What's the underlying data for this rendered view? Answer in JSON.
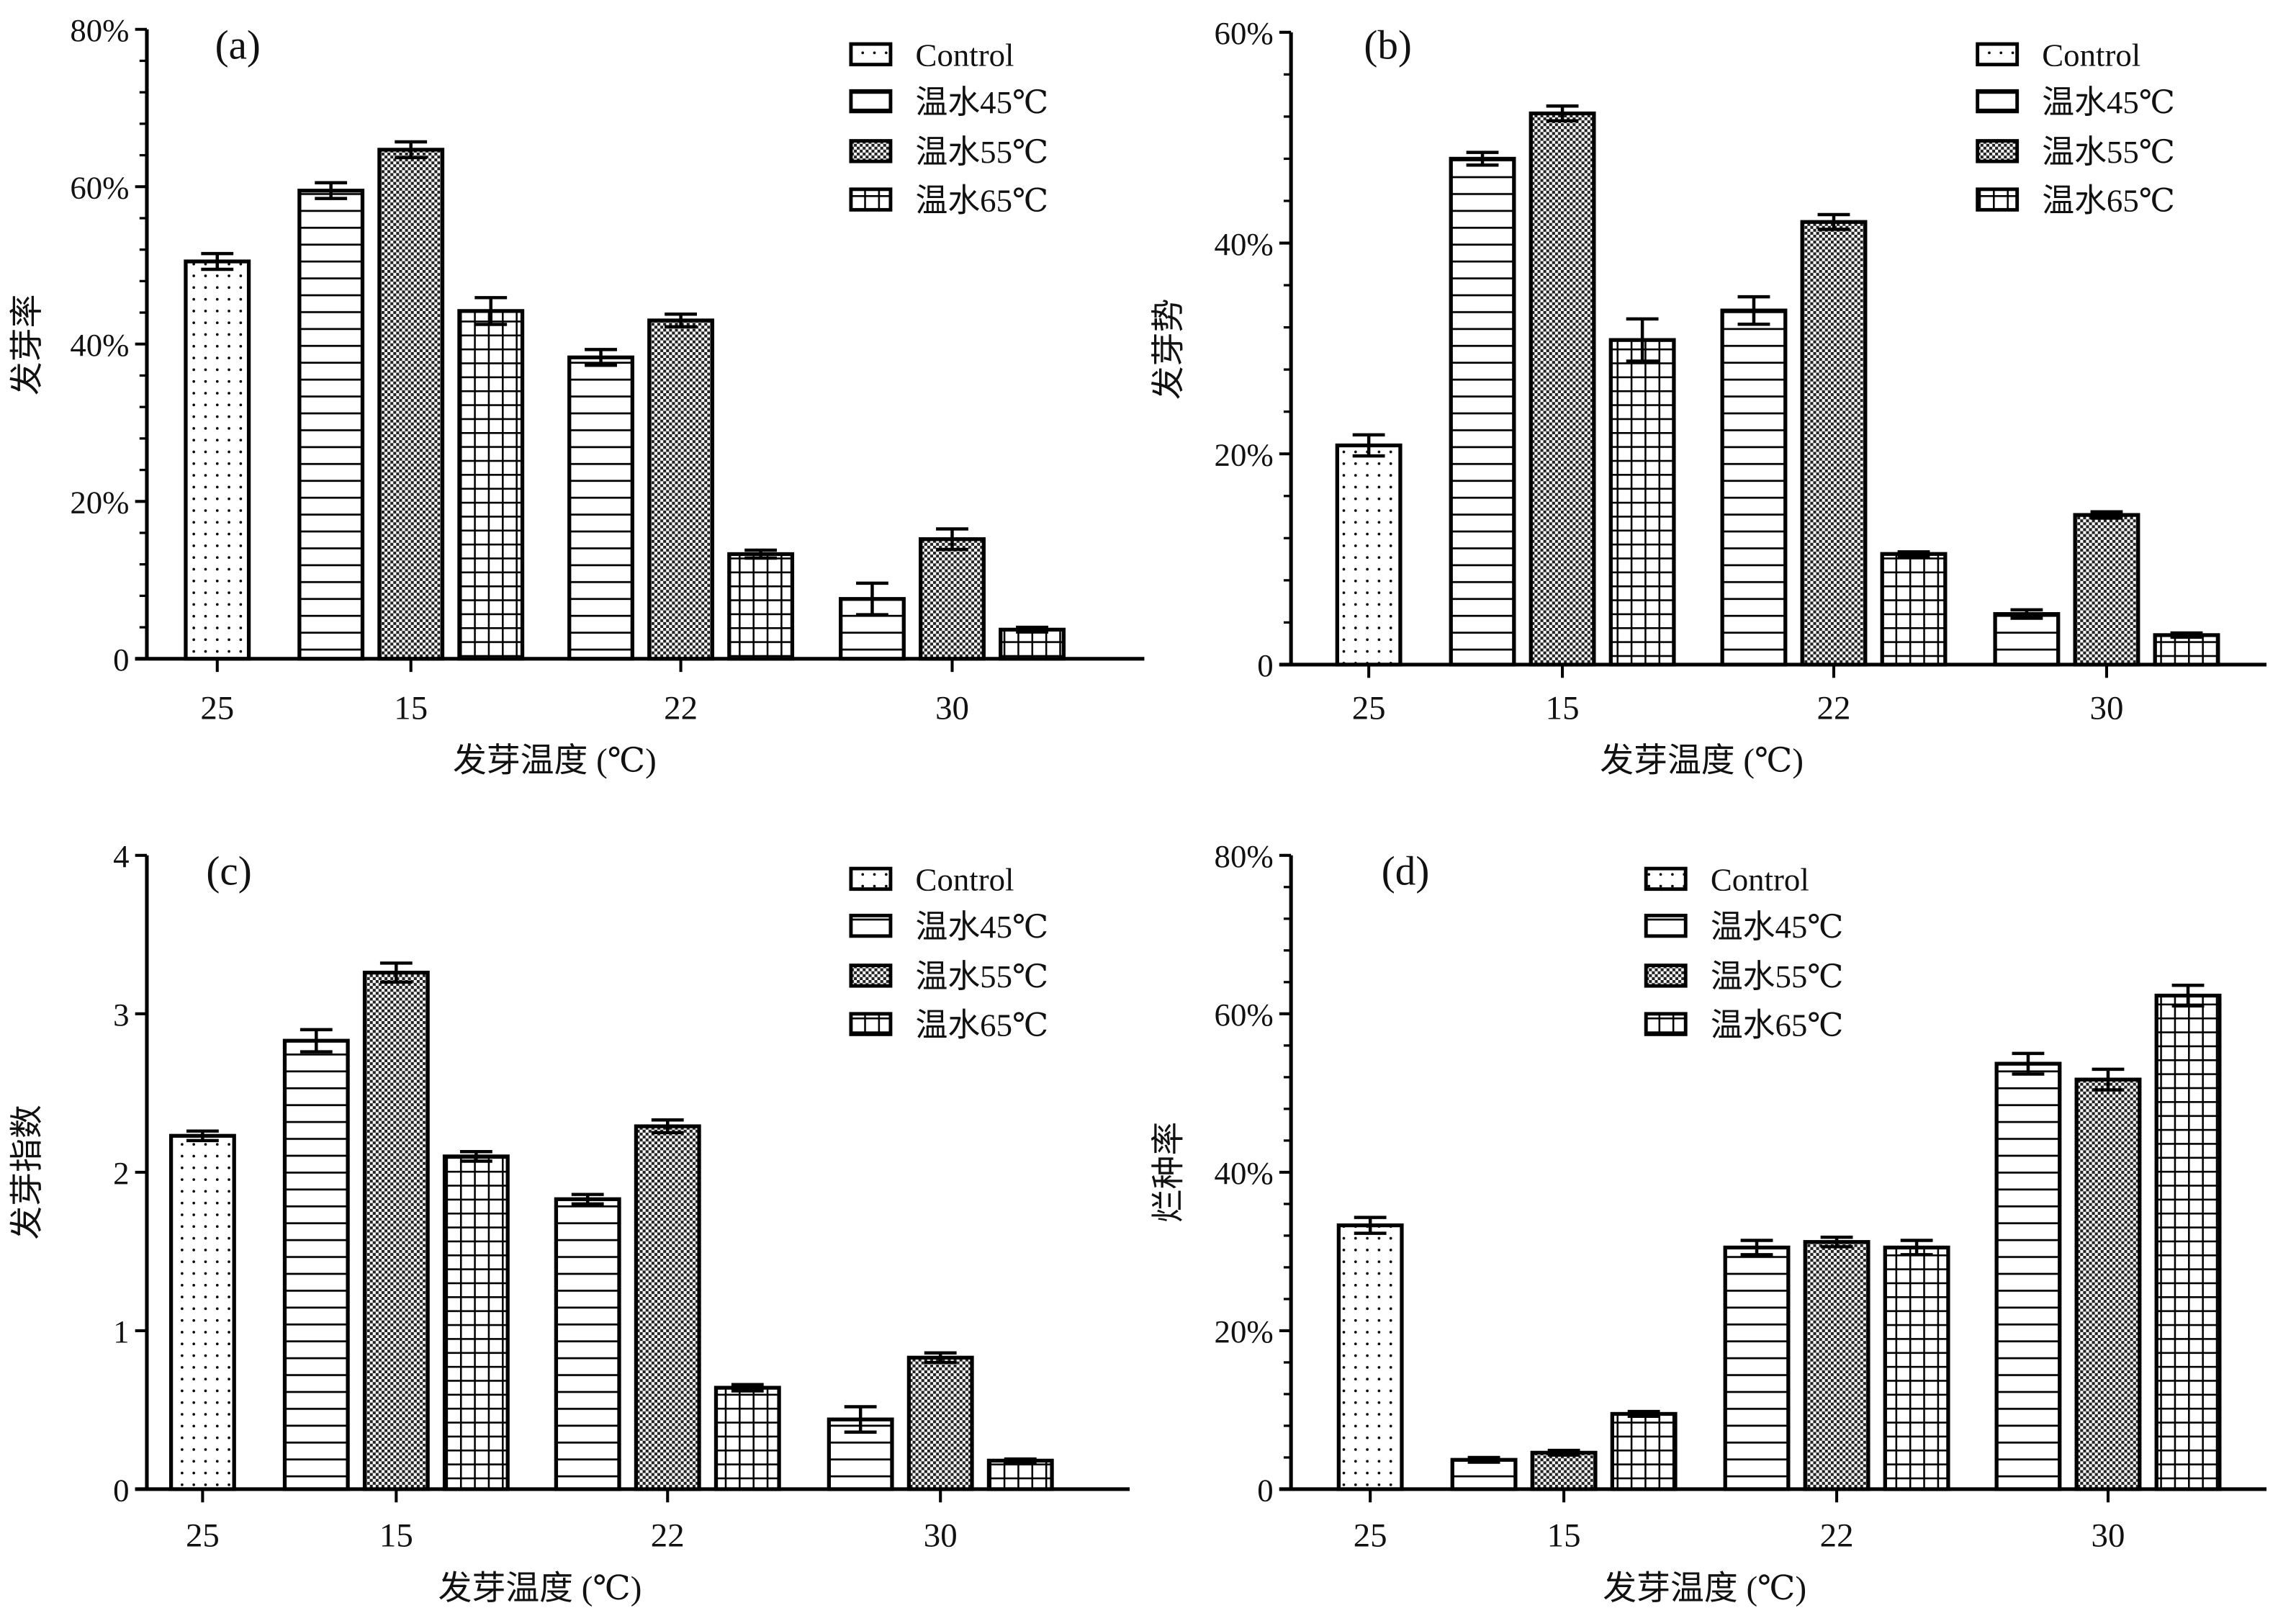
{
  "legend": [
    "Control",
    "温水45℃",
    "温水55℃",
    "温水65℃"
  ],
  "patterns": [
    "dots",
    "horizontal-lines",
    "checker",
    "grid"
  ],
  "colors": {
    "stroke": "#000000",
    "fill": "#ffffff"
  },
  "chart_data": [
    {
      "type": "bar",
      "panel_label": "(a)",
      "ylabel": "发芽率",
      "xlabel": "发芽温度 (℃)",
      "ylim": [
        0,
        80
      ],
      "yticks": [
        "0",
        "20%",
        "40%",
        "60%",
        "80%"
      ],
      "ytick_values": [
        0,
        20,
        40,
        60,
        80
      ],
      "categories": [
        "25",
        "15",
        "22",
        "30"
      ],
      "series": [
        {
          "name": "Control",
          "values": [
            50.5,
            null,
            null,
            null
          ],
          "errors": [
            1.0,
            null,
            null,
            null
          ]
        },
        {
          "name": "温水45℃",
          "values": [
            null,
            59.5,
            38.3,
            7.6
          ],
          "errors": [
            null,
            1.0,
            1.0,
            2.0
          ]
        },
        {
          "name": "温水55℃",
          "values": [
            null,
            64.7,
            43.0,
            15.2
          ],
          "errors": [
            null,
            1.0,
            0.8,
            1.3
          ]
        },
        {
          "name": "温水65℃",
          "values": [
            null,
            44.2,
            13.3,
            3.7
          ],
          "errors": [
            null,
            1.7,
            0.5,
            0.3
          ]
        }
      ]
    },
    {
      "type": "bar",
      "panel_label": "(b)",
      "ylabel": "发芽势",
      "xlabel": "发芽温度 (℃)",
      "ylim": [
        0,
        60
      ],
      "yticks": [
        "0",
        "20%",
        "40%",
        "60%"
      ],
      "ytick_values": [
        0,
        20,
        40,
        60
      ],
      "categories": [
        "25",
        "15",
        "22",
        "30"
      ],
      "series": [
        {
          "name": "Control",
          "values": [
            20.8,
            null,
            null,
            null
          ],
          "errors": [
            1.0,
            null,
            null,
            null
          ]
        },
        {
          "name": "温水45℃",
          "values": [
            null,
            48.0,
            33.6,
            4.8
          ],
          "errors": [
            null,
            0.6,
            1.3,
            0.4
          ]
        },
        {
          "name": "温水55℃",
          "values": [
            null,
            52.3,
            42.0,
            14.2
          ],
          "errors": [
            null,
            0.7,
            0.7,
            0.3
          ]
        },
        {
          "name": "温水65℃",
          "values": [
            null,
            30.8,
            10.5,
            2.8
          ],
          "errors": [
            null,
            2.0,
            0.2,
            0.2
          ]
        }
      ]
    },
    {
      "type": "bar",
      "panel_label": "(c)",
      "ylabel": "发芽指数",
      "xlabel": "发芽温度 (℃)",
      "ylim": [
        0,
        4
      ],
      "yticks": [
        "0",
        "1",
        "2",
        "3",
        "4"
      ],
      "ytick_values": [
        0,
        1,
        2,
        3,
        4
      ],
      "categories": [
        "25",
        "15",
        "22",
        "30"
      ],
      "series": [
        {
          "name": "Control",
          "values": [
            2.23,
            null,
            null,
            null
          ],
          "errors": [
            0.03,
            null,
            null,
            null
          ]
        },
        {
          "name": "温水45℃",
          "values": [
            null,
            2.83,
            1.83,
            0.44
          ],
          "errors": [
            null,
            0.07,
            0.03,
            0.08
          ]
        },
        {
          "name": "温水55℃",
          "values": [
            null,
            3.26,
            2.29,
            0.83
          ],
          "errors": [
            null,
            0.06,
            0.04,
            0.03
          ]
        },
        {
          "name": "温水65℃",
          "values": [
            null,
            2.1,
            0.64,
            0.18
          ],
          "errors": [
            null,
            0.03,
            0.02,
            0.01
          ]
        }
      ]
    },
    {
      "type": "bar",
      "panel_label": "(d)",
      "ylabel": "烂种率",
      "xlabel": "发芽温度 (℃)",
      "ylim": [
        0,
        80
      ],
      "yticks": [
        "0",
        "20%",
        "40%",
        "60%",
        "80%"
      ],
      "ytick_values": [
        0,
        20,
        40,
        60,
        80
      ],
      "categories": [
        "25",
        "15",
        "22",
        "30"
      ],
      "series": [
        {
          "name": "Control",
          "values": [
            33.3,
            null,
            null,
            null
          ],
          "errors": [
            1.0,
            null,
            null,
            null
          ]
        },
        {
          "name": "温水45℃",
          "values": [
            null,
            3.7,
            30.5,
            53.7
          ],
          "errors": [
            null,
            0.3,
            0.9,
            1.3
          ]
        },
        {
          "name": "温水55℃",
          "values": [
            null,
            4.6,
            31.2,
            51.7
          ],
          "errors": [
            null,
            0.3,
            0.6,
            1.3
          ]
        },
        {
          "name": "温水65℃",
          "values": [
            null,
            9.5,
            30.5,
            62.3
          ],
          "errors": [
            null,
            0.3,
            0.9,
            1.3
          ]
        }
      ]
    }
  ]
}
